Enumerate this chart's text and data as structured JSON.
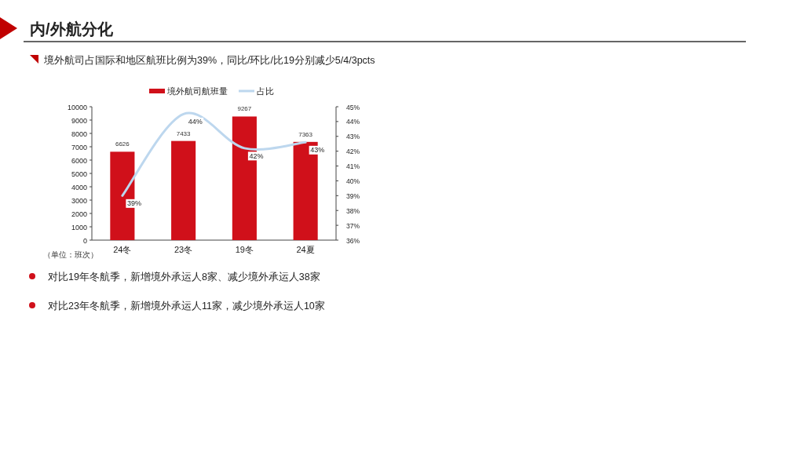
{
  "chart_data": {
    "type": "bar",
    "title": "内/外航分化",
    "subtitle": "境外航司占国际和地区航班比例为39%，同比/环比/比19分别减少5/4/3pcts",
    "categories": [
      "24冬",
      "23冬",
      "19冬",
      "24夏"
    ],
    "series": [
      {
        "name": "境外航司航班量",
        "color": "#d0101a",
        "values": [
          6626,
          7433,
          9267,
          7363
        ],
        "value_labels": [
          "6626",
          "7433",
          "9267",
          "7363"
        ]
      },
      {
        "name": "占比",
        "type": "line",
        "axis": "y2",
        "color": "#bdd7ee",
        "values": [
          39.0,
          44.5,
          42.2,
          42.6
        ],
        "value_labels": [
          "39%",
          "44%",
          "42%",
          "43%"
        ]
      }
    ],
    "ylim": [
      0,
      10000
    ],
    "yticks": [
      0,
      1000,
      2000,
      3000,
      4000,
      5000,
      6000,
      7000,
      8000,
      9000,
      10000
    ],
    "y2lim": [
      36,
      45
    ],
    "y2ticks": [
      {
        "value": 36,
        "label": "36%"
      },
      {
        "value": 37,
        "label": "37%"
      },
      {
        "value": 38,
        "label": "38%"
      },
      {
        "value": 39,
        "label": "39%"
      },
      {
        "value": 40,
        "label": "40%"
      },
      {
        "value": 41,
        "label": "41%"
      },
      {
        "value": 42,
        "label": "42%"
      },
      {
        "value": 43,
        "label": "43%"
      },
      {
        "value": 44,
        "label": "44%"
      },
      {
        "value": 45,
        "label": "45%"
      }
    ],
    "legend": "top",
    "annotations": [
      "（单位：班次）",
      "对比19年冬航季，新增境外承运人8家、减少境外承运人38家",
      "对比23年冬航季，新增境外承运人11家，减少境外承运人10家"
    ]
  }
}
